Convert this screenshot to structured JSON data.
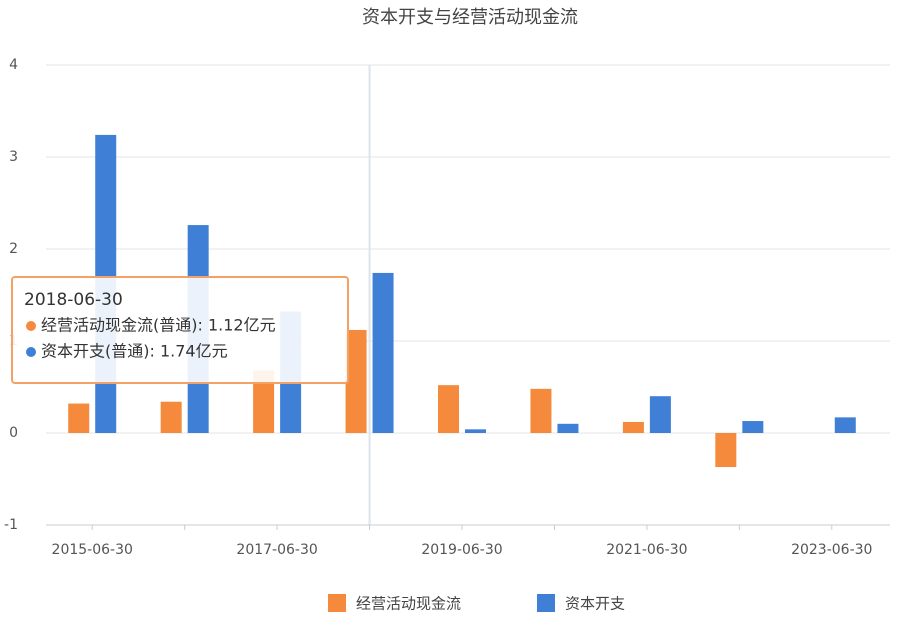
{
  "chart_data": {
    "type": "bar",
    "title": "资本开支与经营活动现金流",
    "categories": [
      "2015-06-30",
      null,
      "2017-06-30",
      null,
      "2019-06-30",
      null,
      "2021-06-30",
      null,
      "2023-06-30"
    ],
    "series": [
      {
        "name": "经营活动现金流",
        "color": "#f58a3c",
        "values": [
          0.32,
          0.34,
          0.68,
          1.12,
          0.52,
          0.48,
          0.12,
          -0.37,
          null
        ]
      },
      {
        "name": "资本开支",
        "color": "#3f7fd6",
        "values": [
          3.24,
          2.26,
          1.32,
          1.74,
          0.04,
          0.1,
          0.4,
          0.13,
          0.17
        ]
      }
    ],
    "ylim": [
      -1,
      4
    ],
    "yticks": [
      -1,
      0,
      1,
      2,
      3,
      4
    ],
    "grid": true,
    "tooltip": {
      "title": "2018-06-30",
      "lines": [
        "经营活动现金流(普通): 1.12亿元",
        "资本开支(普通): 1.74亿元"
      ]
    }
  }
}
